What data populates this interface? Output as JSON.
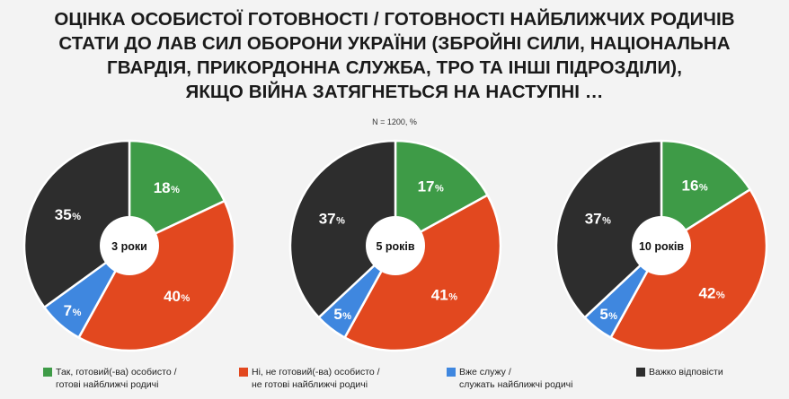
{
  "title": {
    "lines": [
      "ОЦІНКА ОСОБИСТОЇ ГОТОВНОСТІ / ГОТОВНОСТІ НАЙБЛИЖЧИХ РОДИЧІВ",
      "СТАТИ ДО ЛАВ СИЛ ОБОРОНИ УКРАЇНИ (ЗБРОЙНІ СИЛИ, НАЦІОНАЛЬНА",
      "ГВАРДІЯ, ПРИКОРДОННА СЛУЖБА, ТРО ТА ІНШІ ПІДРОЗДІЛИ),",
      "ЯКЩО ВІЙНА ЗАТЯГНЕТЬСЯ НА НАСТУПНІ …"
    ]
  },
  "subtitle": "N = 1200, %",
  "percent_sign": "%",
  "colors": {
    "ready": "#3e9b47",
    "not_ready": "#e2481f",
    "serving": "#3f87df",
    "hard_to_say": "#2d2d2d"
  },
  "legend": [
    {
      "key": "ready",
      "lines": [
        "Так, готовий(-ва) особисто /",
        "готові найближчі родичі"
      ]
    },
    {
      "key": "not_ready",
      "lines": [
        "Ні, не готовий(-ва) особисто /",
        "не готові найближчі родичі"
      ]
    },
    {
      "key": "serving",
      "lines": [
        "Вже служу /",
        "служать найближчі родичі"
      ]
    },
    {
      "key": "hard_to_say",
      "lines": [
        "Важко відповісти"
      ]
    }
  ],
  "chart_data": [
    {
      "type": "pie",
      "center_label": "3 роки",
      "slices": [
        {
          "key": "ready",
          "value": 18
        },
        {
          "key": "not_ready",
          "value": 40
        },
        {
          "key": "serving",
          "value": 7
        },
        {
          "key": "hard_to_say",
          "value": 35
        }
      ]
    },
    {
      "type": "pie",
      "center_label": "5 років",
      "slices": [
        {
          "key": "ready",
          "value": 17
        },
        {
          "key": "not_ready",
          "value": 41
        },
        {
          "key": "serving",
          "value": 5
        },
        {
          "key": "hard_to_say",
          "value": 37
        }
      ]
    },
    {
      "type": "pie",
      "center_label": "10 років",
      "slices": [
        {
          "key": "ready",
          "value": 16
        },
        {
          "key": "not_ready",
          "value": 42
        },
        {
          "key": "serving",
          "value": 5
        },
        {
          "key": "hard_to_say",
          "value": 37
        }
      ]
    }
  ]
}
